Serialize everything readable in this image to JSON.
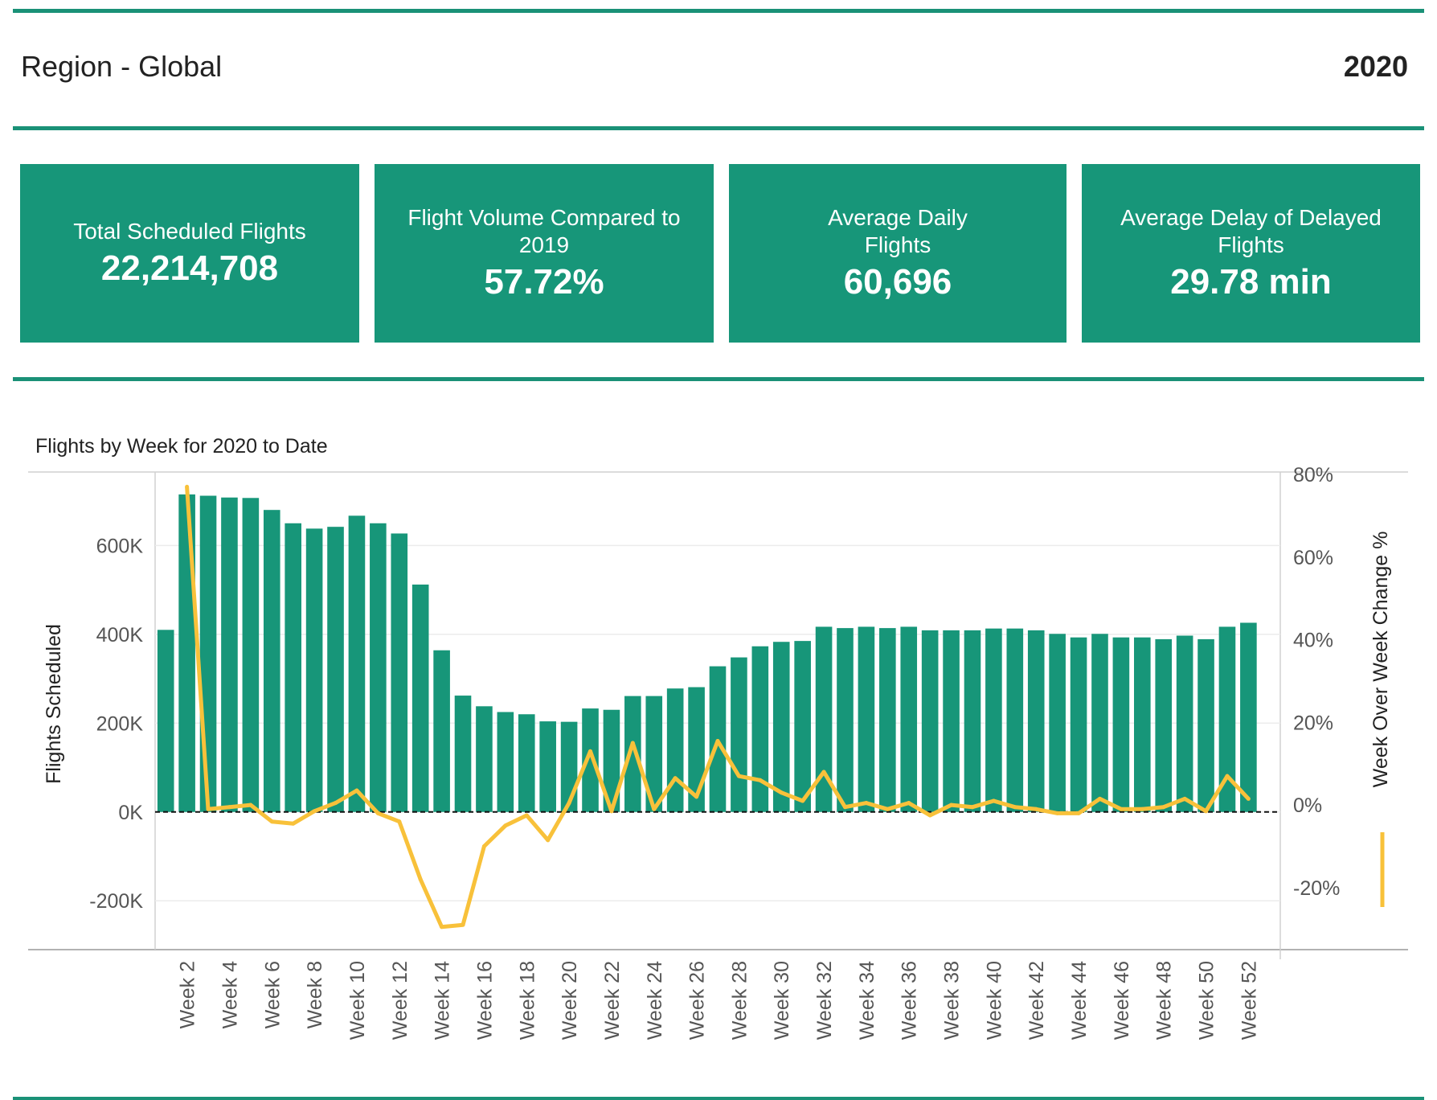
{
  "header": {
    "title": "Region - Global",
    "year": "2020"
  },
  "kpis": [
    {
      "label": "Total Scheduled Flights",
      "value": "22,214,708"
    },
    {
      "label": "Flight Volume Compared to 2019",
      "value": "57.72%"
    },
    {
      "label": "Average Daily Flights",
      "value": "60,696"
    },
    {
      "label": "Average Delay of Delayed Flights",
      "value": "29.78 min"
    }
  ],
  "colors": {
    "accent": "#1a9177",
    "bar": "#179679",
    "line": "#f8c13a"
  },
  "chart_data": {
    "type": "bar",
    "title": "Flights by Week for 2020 to Date",
    "ylabel": "Flights Scheduled",
    "y2label": "Week Over Week Change %",
    "ylim": [
      -310000,
      760000
    ],
    "y2lim": [
      -35,
      80
    ],
    "yticks": [
      "-200K",
      "0K",
      "200K",
      "400K",
      "600K"
    ],
    "ytick_values": [
      -200000,
      0,
      200000,
      400000,
      600000
    ],
    "y2ticks": [
      "-20%",
      "0%",
      "20%",
      "40%",
      "60%",
      "80%"
    ],
    "y2tick_values": [
      -20,
      0,
      20,
      40,
      60,
      80
    ],
    "xtick_labels": [
      "Week 2",
      "Week 4",
      "Week 6",
      "Week 8",
      "Week 10",
      "Week 12",
      "Week 14",
      "Week 16",
      "Week 18",
      "Week 20",
      "Week 22",
      "Week 24",
      "Week 26",
      "Week 28",
      "Week 30",
      "Week 32",
      "Week 34",
      "Week 36",
      "Week 38",
      "Week 40",
      "Week 42",
      "Week 44",
      "Week 46",
      "Week 48",
      "Week 50",
      "Week 52"
    ],
    "x": [
      1,
      2,
      3,
      4,
      5,
      6,
      7,
      8,
      9,
      10,
      11,
      12,
      13,
      14,
      15,
      16,
      17,
      18,
      19,
      20,
      21,
      22,
      23,
      24,
      25,
      26,
      27,
      28,
      29,
      30,
      31,
      32,
      33,
      34,
      35,
      36,
      37,
      38,
      39,
      40,
      41,
      42,
      43,
      44,
      45,
      46,
      47,
      48,
      49,
      50,
      51,
      52,
      53
    ],
    "series": [
      {
        "type": "bar",
        "values": [
          410000,
          715000,
          712000,
          708000,
          707000,
          680000,
          650000,
          638000,
          642000,
          667000,
          650000,
          627000,
          512000,
          364000,
          262000,
          238000,
          225000,
          220000,
          204000,
          203000,
          233000,
          230000,
          261000,
          261000,
          278000,
          281000,
          328000,
          348000,
          373000,
          383000,
          385000,
          417000,
          414000,
          417000,
          414000,
          417000,
          409000,
          409000,
          409000,
          413000,
          413000,
          409000,
          401000,
          393000,
          401000,
          393000,
          393000,
          389000,
          397000,
          389000,
          417000,
          426000,
          0
        ]
      },
      {
        "type": "line",
        "axis": "right",
        "values": [
          null,
          77,
          -1,
          -0.5,
          0,
          -4,
          -4.5,
          -1.5,
          0.5,
          3.5,
          -2,
          -4,
          -18,
          -29.5,
          -29,
          -10,
          -5,
          -2.5,
          -8.5,
          0.5,
          13,
          -1.5,
          15,
          -1,
          6.5,
          2,
          15.5,
          7,
          6,
          3,
          1,
          8,
          -0.5,
          0.5,
          -1,
          0.5,
          -2.5,
          0,
          -0.5,
          1,
          -0.5,
          -1,
          -2,
          -2,
          1.5,
          -1,
          -1,
          -0.5,
          1.5,
          -1.5,
          7,
          1.5,
          null
        ]
      }
    ]
  }
}
